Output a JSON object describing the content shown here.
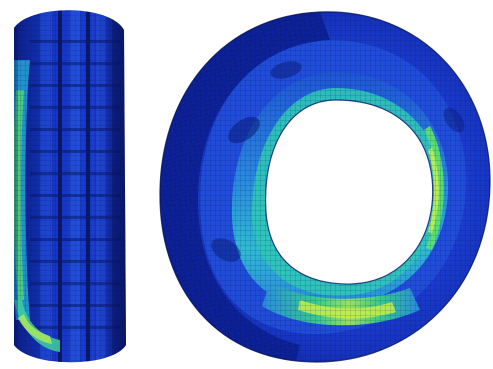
{
  "figure": {
    "views": [
      {
        "name": "tire-side-view"
      },
      {
        "name": "tire-three-quarter-view"
      }
    ],
    "colors": {
      "background": "#ffffff",
      "base_deep_blue": "#0a1d8a",
      "mid_blue": "#1d3fd6",
      "light_blue": "#2f7de6",
      "cyan": "#22b8d8",
      "green": "#46d26b",
      "yellow_green": "#b8f04a",
      "mesh_line": "#061447"
    },
    "render_style": "finite-element mesh stress contour, no text labels"
  }
}
